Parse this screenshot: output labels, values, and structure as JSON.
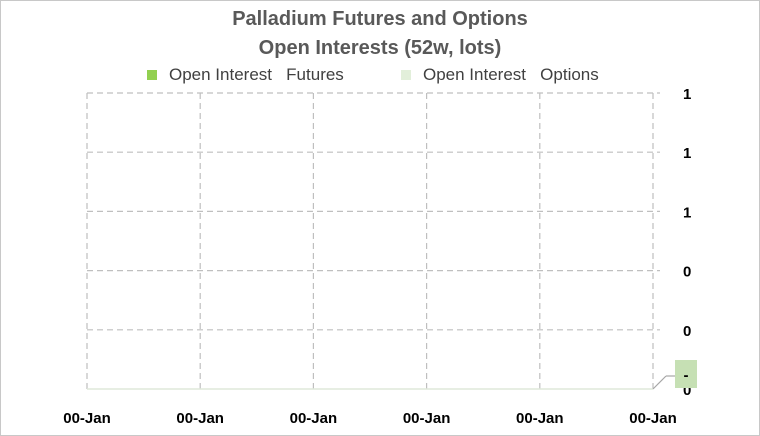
{
  "chart_data": {
    "type": "area",
    "title": "Palladium  Futures and Options",
    "subtitle": "Open Interests (52w, lots)",
    "xlabel": "",
    "ylabel": "",
    "categories": [
      "00-Jan",
      "00-Jan",
      "00-Jan",
      "00-Jan",
      "00-Jan",
      "00-Jan"
    ],
    "y_ticks": [
      "0",
      "0",
      "0",
      "1",
      "1",
      "1"
    ],
    "ylim": [
      0,
      1
    ],
    "grid": true,
    "legend_position": "top",
    "series": [
      {
        "name": "Open Interest   Futures",
        "color": "#92d050",
        "values": [
          0,
          0,
          0,
          0,
          0,
          0
        ]
      },
      {
        "name": "Open Interest   Options",
        "color": "#e2efda",
        "values": [
          0,
          0,
          0,
          0,
          0,
          0
        ]
      }
    ],
    "annotation": {
      "text": "-",
      "color": "#c6e0b4"
    }
  }
}
